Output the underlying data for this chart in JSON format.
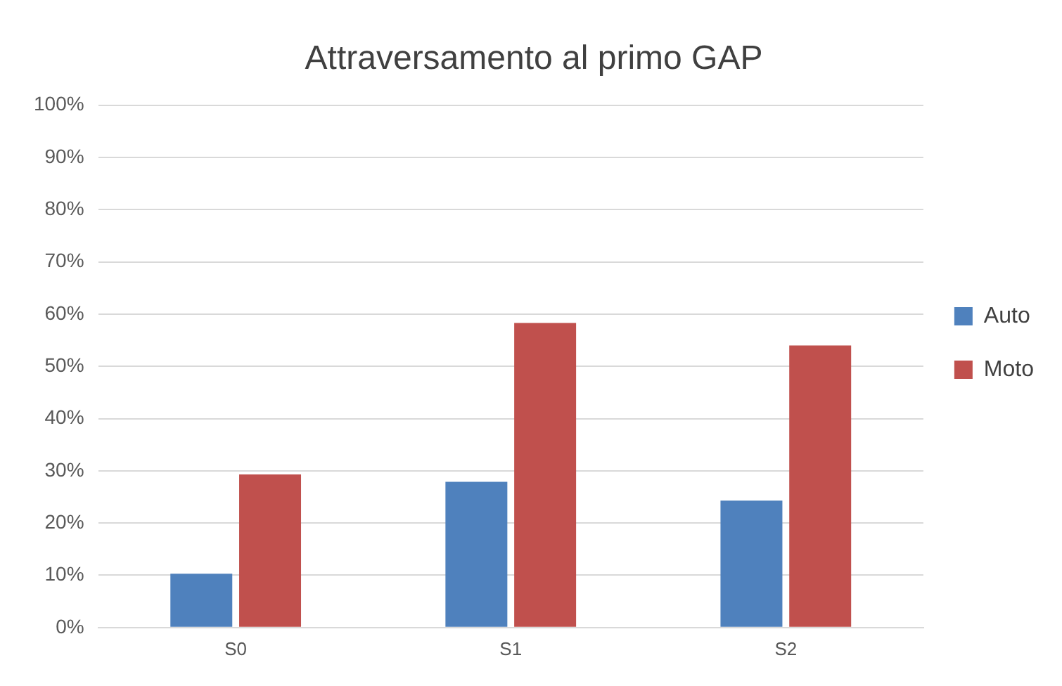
{
  "chart_data": {
    "type": "bar",
    "title": "Attraversamento al primo GAP",
    "categories": [
      "S0",
      "S1",
      "S2"
    ],
    "series": [
      {
        "name": "Auto",
        "color": "#4f81bd",
        "values": [
          10.3,
          27.9,
          24.3
        ]
      },
      {
        "name": "Moto",
        "color": "#c0504d",
        "values": [
          29.3,
          58.3,
          54.0
        ]
      }
    ],
    "ylim": [
      0,
      100
    ],
    "yticks": [
      {
        "value": 0,
        "label": "0%"
      },
      {
        "value": 10,
        "label": "10%"
      },
      {
        "value": 20,
        "label": "20%"
      },
      {
        "value": 30,
        "label": "30%"
      },
      {
        "value": 40,
        "label": "40%"
      },
      {
        "value": 50,
        "label": "50%"
      },
      {
        "value": 60,
        "label": "60%"
      },
      {
        "value": 70,
        "label": "70%"
      },
      {
        "value": 80,
        "label": "80%"
      },
      {
        "value": 90,
        "label": "90%"
      },
      {
        "value": 100,
        "label": "100%"
      }
    ],
    "grid": "y",
    "legend": "right"
  }
}
